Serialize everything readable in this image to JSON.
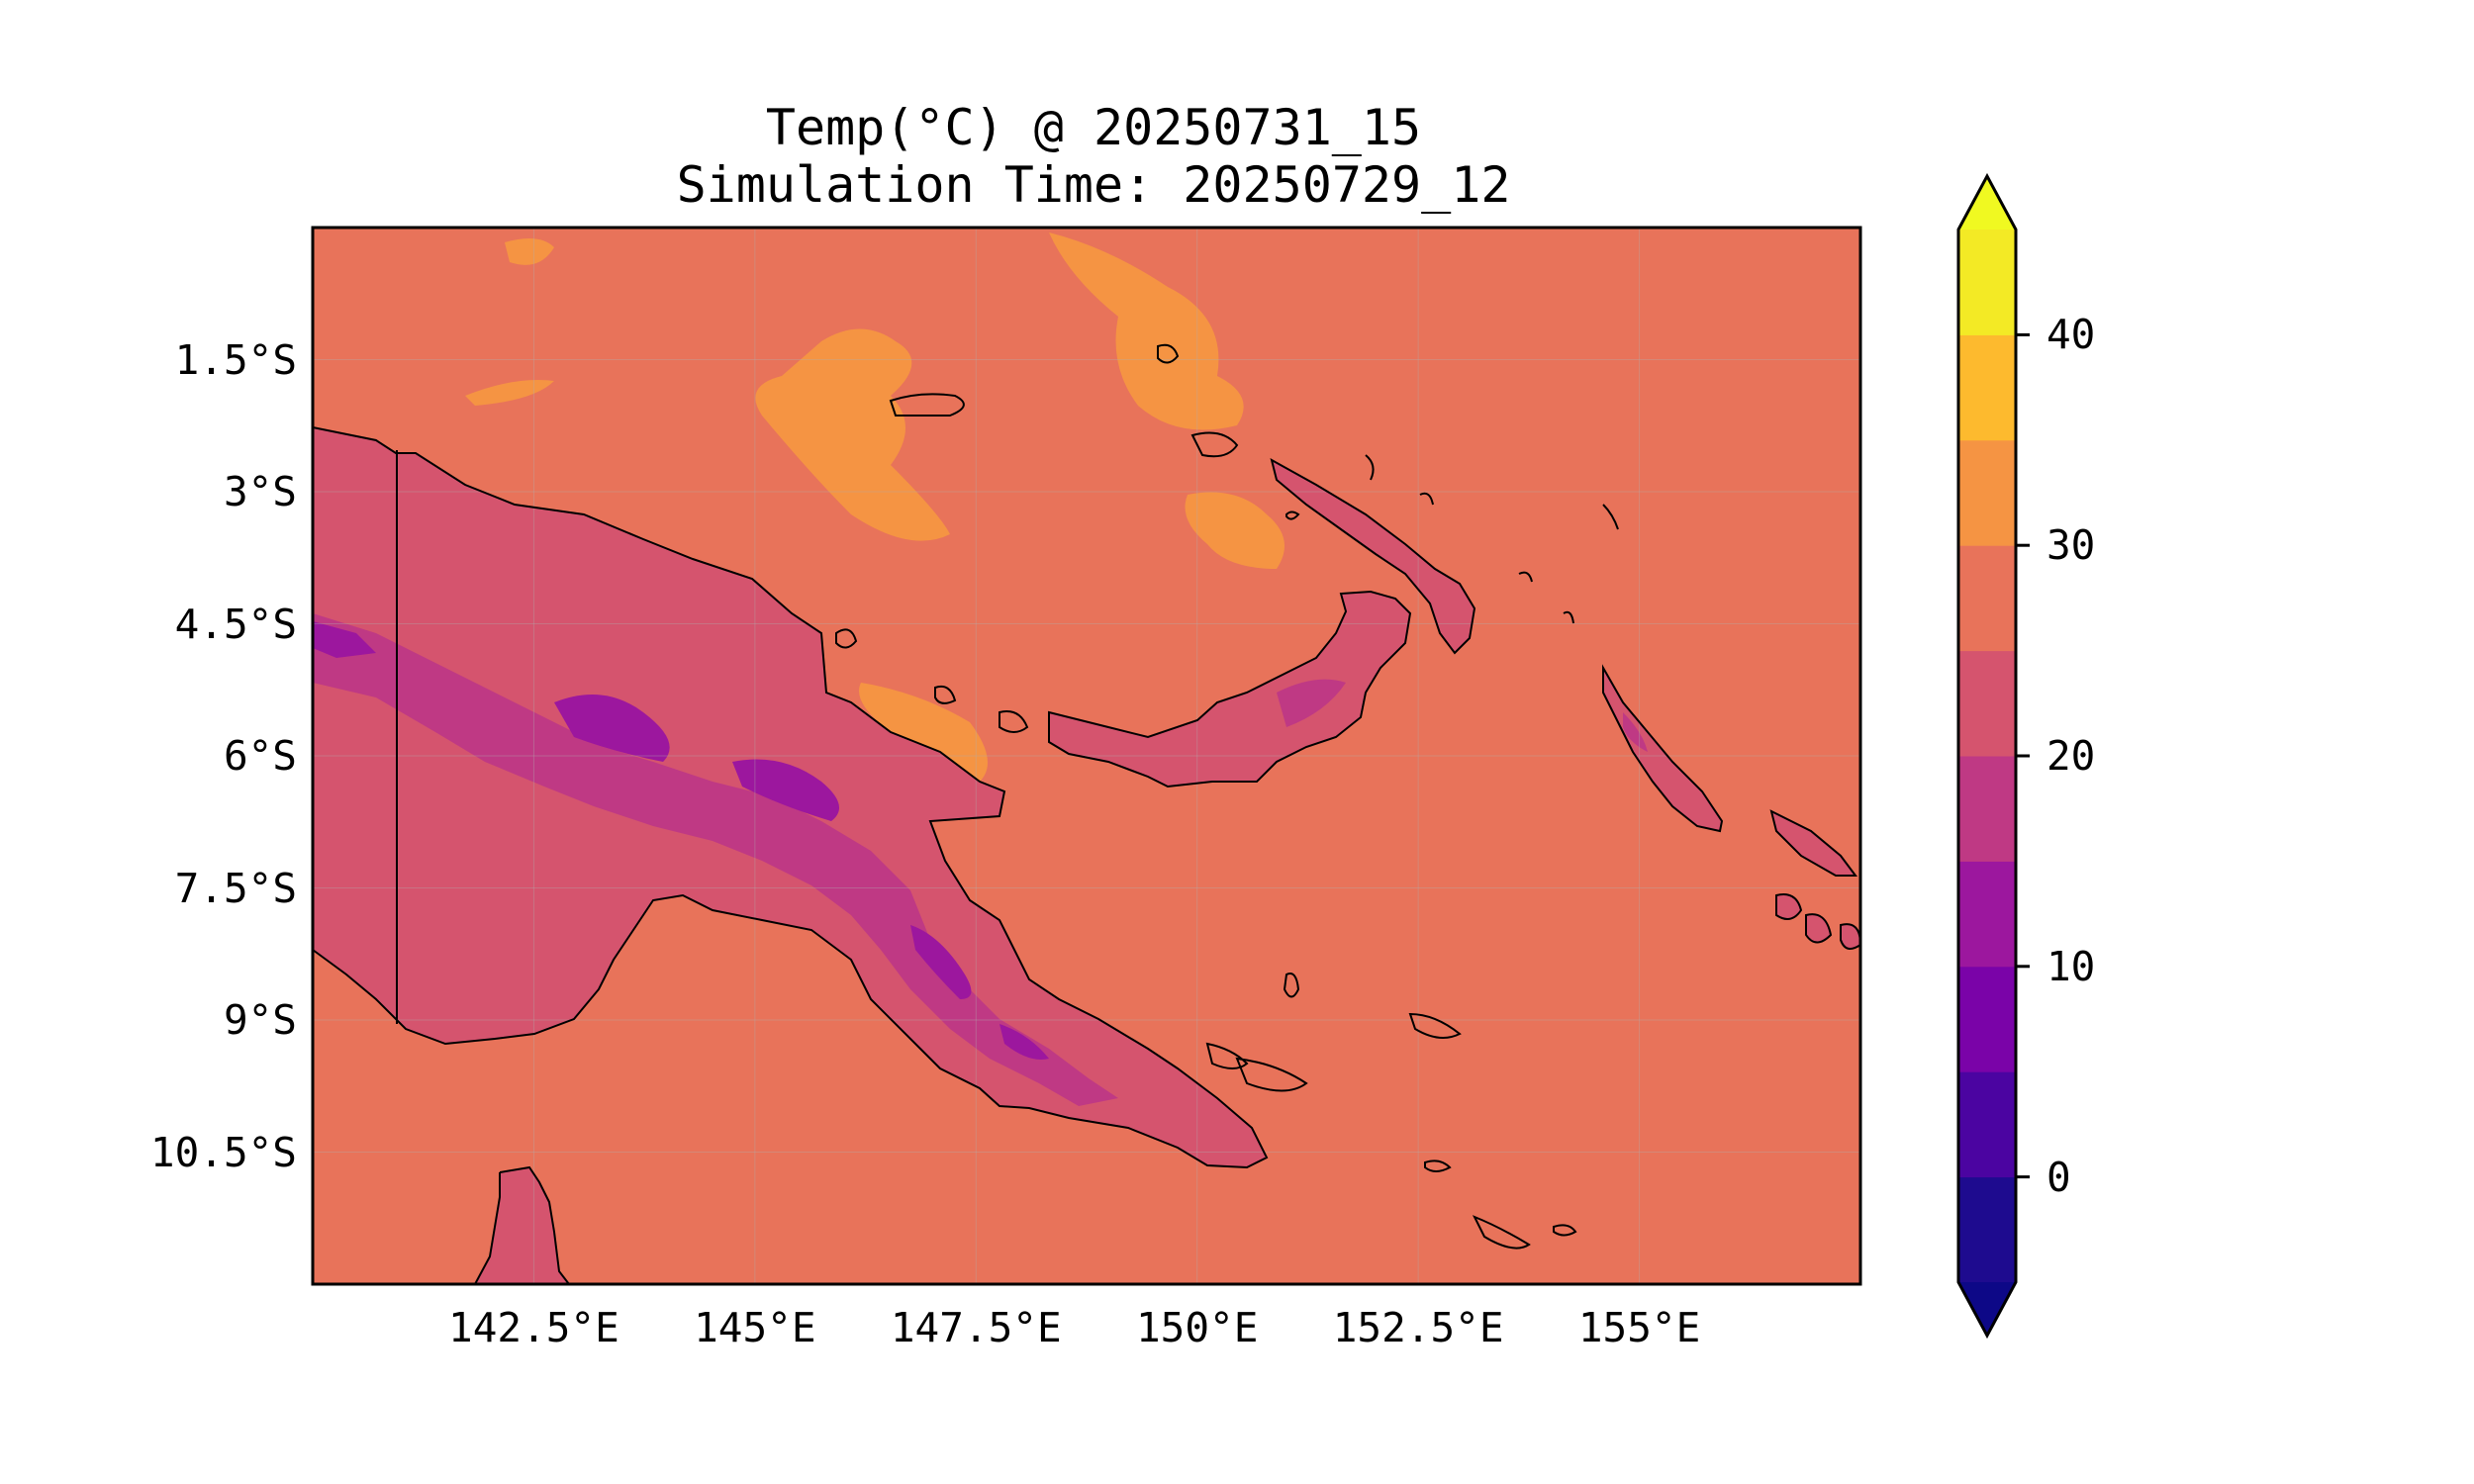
{
  "title": {
    "line1": "Temp(°C) @ 20250731_15",
    "line2": "Simulation Time: 20250729_12"
  },
  "map": {
    "region": "Papua New Guinea",
    "variable": "Temp(°C)",
    "lat_ticks": [
      "1.5°S",
      "3°S",
      "4.5°S",
      "6°S",
      "7.5°S",
      "9°S",
      "10.5°S"
    ],
    "lon_ticks": [
      "142.5°E",
      "145°E",
      "147.5°E",
      "150°E",
      "152.5°E",
      "155°E"
    ],
    "lon_range": [
      140,
      157.5
    ],
    "lat_range": [
      -12,
      0
    ],
    "grid": true
  },
  "colorbar": {
    "colormap": "plasma",
    "ticks": [
      "0",
      "10",
      "20",
      "30",
      "40"
    ],
    "levels": [
      -5,
      0,
      5,
      10,
      15,
      20,
      25,
      30,
      35,
      40,
      45
    ],
    "colors": [
      "#1e0b8f",
      "#4b04a1",
      "#7a03a8",
      "#9c179e",
      "#bf3984",
      "#d5546e",
      "#e8735a",
      "#f59443",
      "#fdba2e",
      "#f3ea25"
    ],
    "extend": "both"
  },
  "chart_data": {
    "type": "heatmap",
    "title": "Temp(°C) @ 20250731_15\nSimulation Time: 20250729_12",
    "x_ticks": [
      "142.5°E",
      "145°E",
      "147.5°E",
      "150°E",
      "152.5°E",
      "155°E"
    ],
    "y_ticks": [
      "1.5°S",
      "3°S",
      "4.5°S",
      "6°S",
      "7.5°S",
      "9°S",
      "10.5°S"
    ],
    "colorbar_ticks": [
      0,
      10,
      20,
      30,
      40
    ],
    "colorbar_range": [
      -5,
      45
    ],
    "summary_fields": {
      "ocean": 27.5,
      "northern_warm_patches": 32.5,
      "lowlands": 22.5,
      "highlands": 17.5,
      "highest_peaks": 10
    }
  }
}
